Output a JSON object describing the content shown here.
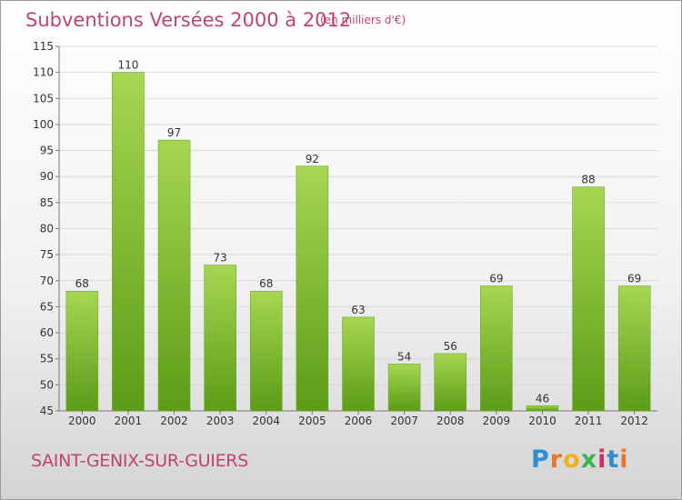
{
  "header": {
    "title": "Subventions Versées 2000 à 2012",
    "subtitle": "(en milliers d'€)"
  },
  "footer": {
    "location": "SAINT-GENIX-SUR-GUIERS",
    "logo": "Proxiti"
  },
  "colors": {
    "bar_light": "#a6d654",
    "bar_dark": "#5c9c16",
    "title": "#c0456b",
    "grid": "#d9d9d9"
  },
  "chart_data": {
    "type": "bar",
    "title": "Subventions Versées 2000 à 2012",
    "subtitle": "(en milliers d'€)",
    "categories": [
      "2000",
      "2001",
      "2002",
      "2003",
      "2004",
      "2005",
      "2006",
      "2007",
      "2008",
      "2009",
      "2010",
      "2011",
      "2012"
    ],
    "values": [
      68,
      110,
      97,
      73,
      68,
      92,
      63,
      54,
      56,
      69,
      46,
      88,
      69
    ],
    "ylim": [
      45,
      115
    ],
    "yticks": [
      45,
      50,
      55,
      60,
      65,
      70,
      75,
      80,
      85,
      90,
      95,
      100,
      105,
      110,
      115
    ],
    "grid": true,
    "legend": "none"
  }
}
